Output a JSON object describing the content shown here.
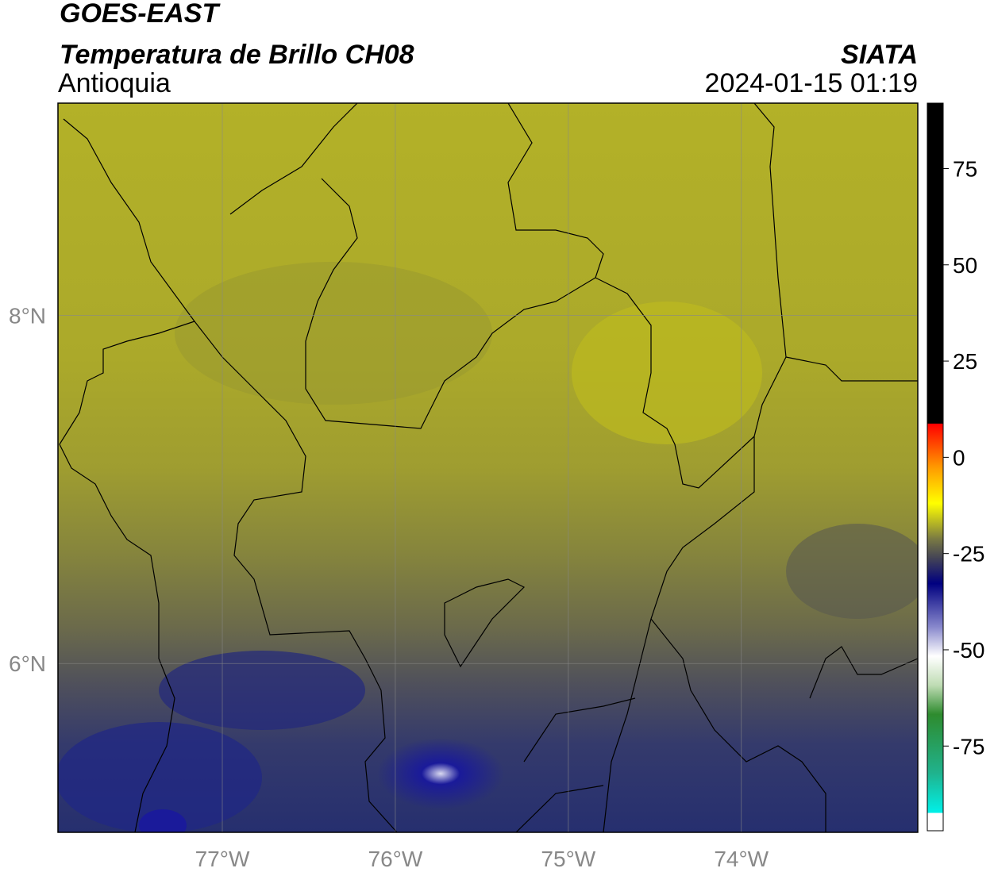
{
  "chart_data": {
    "type": "map",
    "title": "GOES-EAST",
    "subtitle": "Temperatura de Brillo CH08",
    "region": "Antioquia",
    "source": "SIATA",
    "datetime": "2024-01-15 01:19",
    "xlim": [
      -77.95,
      -72.98
    ],
    "ylim": [
      5.03,
      9.22
    ],
    "xticks": [
      {
        "value": -77,
        "label": "77°W"
      },
      {
        "value": -76,
        "label": "76°W"
      },
      {
        "value": -75,
        "label": "75°W"
      },
      {
        "value": -74,
        "label": "74°W"
      }
    ],
    "yticks": [
      {
        "value": 6,
        "label": "6°N"
      },
      {
        "value": 8,
        "label": "8°N"
      }
    ],
    "grid": true,
    "clim": [
      -97,
      92
    ],
    "cticks": [
      75,
      50,
      25,
      0,
      -25,
      -50,
      -75
    ]
  }
}
